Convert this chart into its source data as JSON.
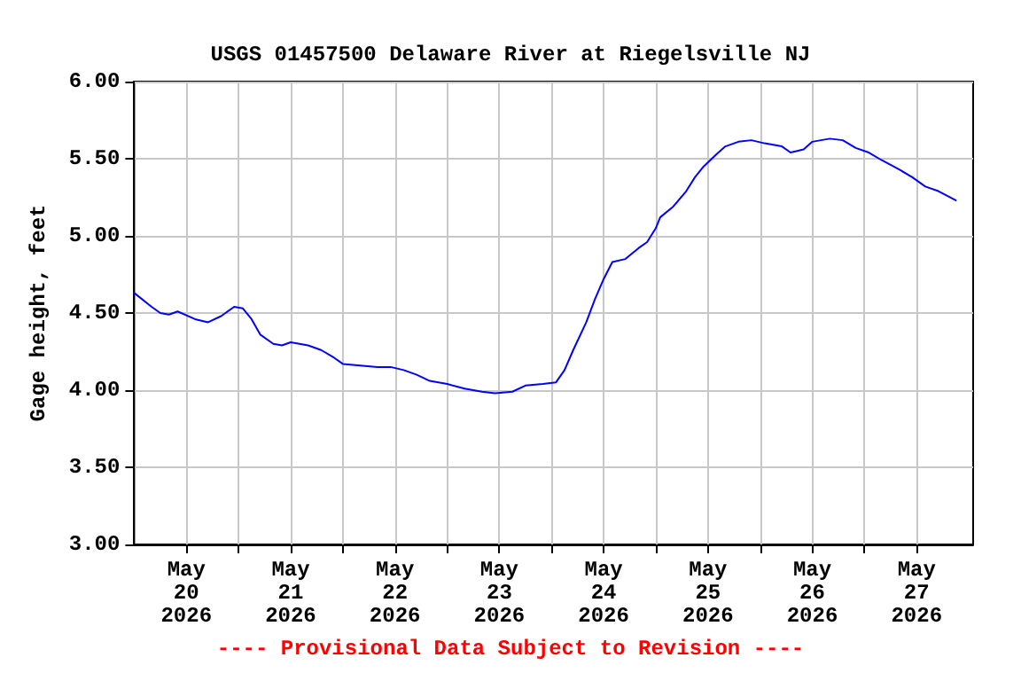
{
  "chart_data": {
    "type": "line",
    "title": "USGS 01457500 Delaware River at Riegelsville NJ",
    "ylabel": "Gage height, feet",
    "x": [
      "2026-05-20T00:00",
      "2026-05-20T04:00",
      "2026-05-20T06:00",
      "2026-05-20T08:00",
      "2026-05-20T10:00",
      "2026-05-20T14:00",
      "2026-05-20T17:00",
      "2026-05-20T20:00",
      "2026-05-20T23:00",
      "2026-05-21T01:00",
      "2026-05-21T03:00",
      "2026-05-21T05:00",
      "2026-05-21T08:00",
      "2026-05-21T10:00",
      "2026-05-21T12:00",
      "2026-05-21T16:00",
      "2026-05-21T19:00",
      "2026-05-21T22:00",
      "2026-05-22T00:00",
      "2026-05-22T04:00",
      "2026-05-22T08:00",
      "2026-05-22T11:00",
      "2026-05-22T14:00",
      "2026-05-22T17:00",
      "2026-05-22T20:00",
      "2026-05-23T00:00",
      "2026-05-23T04:00",
      "2026-05-23T08:00",
      "2026-05-23T11:00",
      "2026-05-23T15:00",
      "2026-05-23T18:00",
      "2026-05-23T22:00",
      "2026-05-24T01:00",
      "2026-05-24T03:00",
      "2026-05-24T05:00",
      "2026-05-24T08:00",
      "2026-05-24T10:00",
      "2026-05-24T12:00",
      "2026-05-24T14:00",
      "2026-05-24T17:00",
      "2026-05-24T20:00",
      "2026-05-24T22:00",
      "2026-05-25T00:00",
      "2026-05-25T01:00",
      "2026-05-25T04:00",
      "2026-05-25T07:00",
      "2026-05-25T09:00",
      "2026-05-25T11:00",
      "2026-05-25T14:00",
      "2026-05-25T16:00",
      "2026-05-25T19:00",
      "2026-05-25T22:00",
      "2026-05-26T01:00",
      "2026-05-26T05:00",
      "2026-05-26T07:00",
      "2026-05-26T10:00",
      "2026-05-26T12:00",
      "2026-05-26T16:00",
      "2026-05-26T19:00",
      "2026-05-26T22:00",
      "2026-05-27T01:00",
      "2026-05-27T04:00",
      "2026-05-27T08:00",
      "2026-05-27T11:00",
      "2026-05-27T14:00",
      "2026-05-27T17:00",
      "2026-05-27T21:00"
    ],
    "series": [
      {
        "color": "#0000ff",
        "values": [
          4.63,
          4.54,
          4.5,
          4.49,
          4.51,
          4.46,
          4.44,
          4.48,
          4.54,
          4.53,
          4.46,
          4.36,
          4.3,
          4.29,
          4.31,
          4.29,
          4.26,
          4.21,
          4.17,
          4.16,
          4.15,
          4.15,
          4.13,
          4.1,
          4.06,
          4.04,
          4.01,
          3.99,
          3.98,
          3.99,
          4.03,
          4.04,
          4.05,
          4.13,
          4.26,
          4.44,
          4.59,
          4.72,
          4.83,
          4.85,
          4.92,
          4.96,
          5.05,
          5.12,
          5.19,
          5.29,
          5.38,
          5.45,
          5.53,
          5.58,
          5.61,
          5.62,
          5.6,
          5.58,
          5.54,
          5.56,
          5.61,
          5.63,
          5.62,
          5.57,
          5.54,
          5.49,
          5.43,
          5.38,
          5.32,
          5.29,
          5.23
        ]
      }
    ],
    "xlim": [
      "2026-05-20T00:00",
      "2026-05-28T01:00"
    ],
    "xticks": [
      {
        "value": "2026-05-20T12:00",
        "label": "May\n20\n2026"
      },
      {
        "value": "2026-05-21T00:00",
        "label": null
      },
      {
        "value": "2026-05-21T12:00",
        "label": "May\n21\n2026"
      },
      {
        "value": "2026-05-22T00:00",
        "label": null
      },
      {
        "value": "2026-05-22T12:00",
        "label": "May\n22\n2026"
      },
      {
        "value": "2026-05-23T00:00",
        "label": null
      },
      {
        "value": "2026-05-23T12:00",
        "label": "May\n23\n2026"
      },
      {
        "value": "2026-05-24T00:00",
        "label": null
      },
      {
        "value": "2026-05-24T12:00",
        "label": "May\n24\n2026"
      },
      {
        "value": "2026-05-25T00:00",
        "label": null
      },
      {
        "value": "2026-05-25T12:00",
        "label": "May\n25\n2026"
      },
      {
        "value": "2026-05-26T00:00",
        "label": null
      },
      {
        "value": "2026-05-26T12:00",
        "label": "May\n26\n2026"
      },
      {
        "value": "2026-05-27T00:00",
        "label": null
      },
      {
        "value": "2026-05-27T12:00",
        "label": "May\n27\n2026"
      }
    ],
    "ylim": [
      3,
      6
    ],
    "yticks": [
      {
        "value": 3,
        "label": "3.00"
      },
      {
        "value": 3.5,
        "label": "3.50"
      },
      {
        "value": 4,
        "label": "4.00"
      },
      {
        "value": 4.5,
        "label": "4.50"
      },
      {
        "value": 5,
        "label": "5.00"
      },
      {
        "value": 5.5,
        "label": "5.50"
      },
      {
        "value": 6,
        "label": "6.00"
      }
    ],
    "grid": true,
    "marker": "none",
    "line_style": "solid",
    "annotations": [
      "---- Provisional Data Subject to Revision ----"
    ]
  }
}
